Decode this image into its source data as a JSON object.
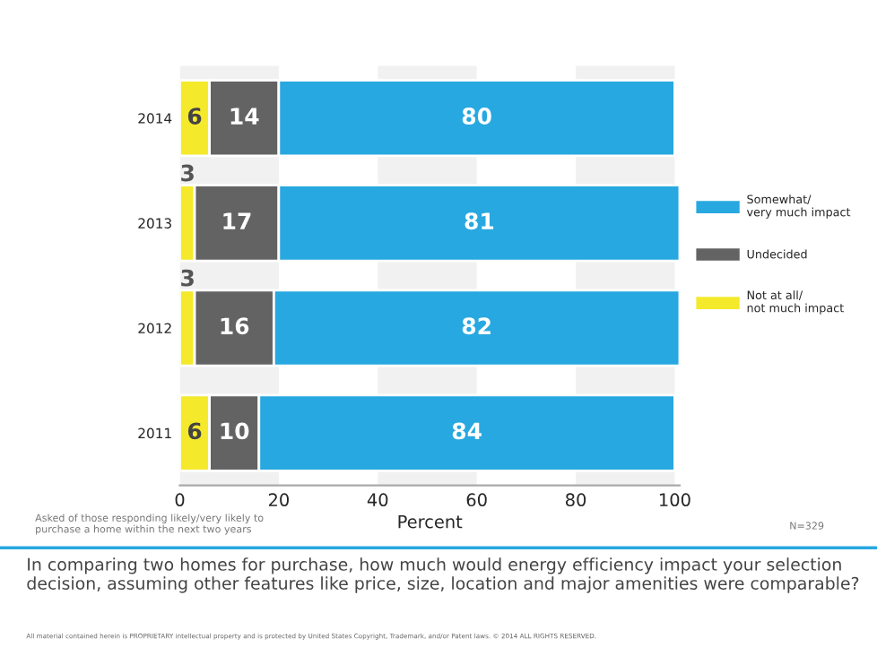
{
  "chart_data": {
    "type": "bar",
    "orientation": "horizontal",
    "stacked": true,
    "data_labels": true,
    "title": "In comparing two homes for purchase, how much would energy efficiency impact your selection decision, assuming other features like price, size, location and major amenities were comparable?",
    "xlabel": "Percent",
    "categories": [
      "2014",
      "2013",
      "2012",
      "2011"
    ],
    "series": [
      {
        "name": "Not at all/\nnot much impact",
        "color": "#f5e92c",
        "values": [
          6,
          3,
          3,
          6
        ]
      },
      {
        "name": "Undecided",
        "color": "#636363",
        "values": [
          14,
          17,
          16,
          10
        ]
      },
      {
        "name": "Somewhat/\nvery much impact",
        "color": "#27a8e0",
        "values": [
          80,
          81,
          82,
          84
        ]
      }
    ],
    "xlim": [
      0,
      101
    ],
    "xticks": [
      0,
      20,
      40,
      60,
      80,
      100
    ],
    "bands": [
      {
        "axis": "x",
        "from": 0,
        "to": 20,
        "color": "#f1f1f2"
      },
      {
        "axis": "x",
        "from": 40,
        "to": 60,
        "color": "#f1f1f2"
      },
      {
        "axis": "x",
        "from": 80,
        "to": 100,
        "color": "#f1f1f2"
      }
    ],
    "legend": "right",
    "grid": false,
    "annotations": [
      "Asked of those responding likely/very likely to\npurchase a home within the next two years",
      "N=329",
      "All material contained herein is PROPRIETARY intellectual property and is protected by United States Copyright, Trademark, and/or Patent laws. © 2014 ALL RIGHTS RESERVED."
    ]
  }
}
